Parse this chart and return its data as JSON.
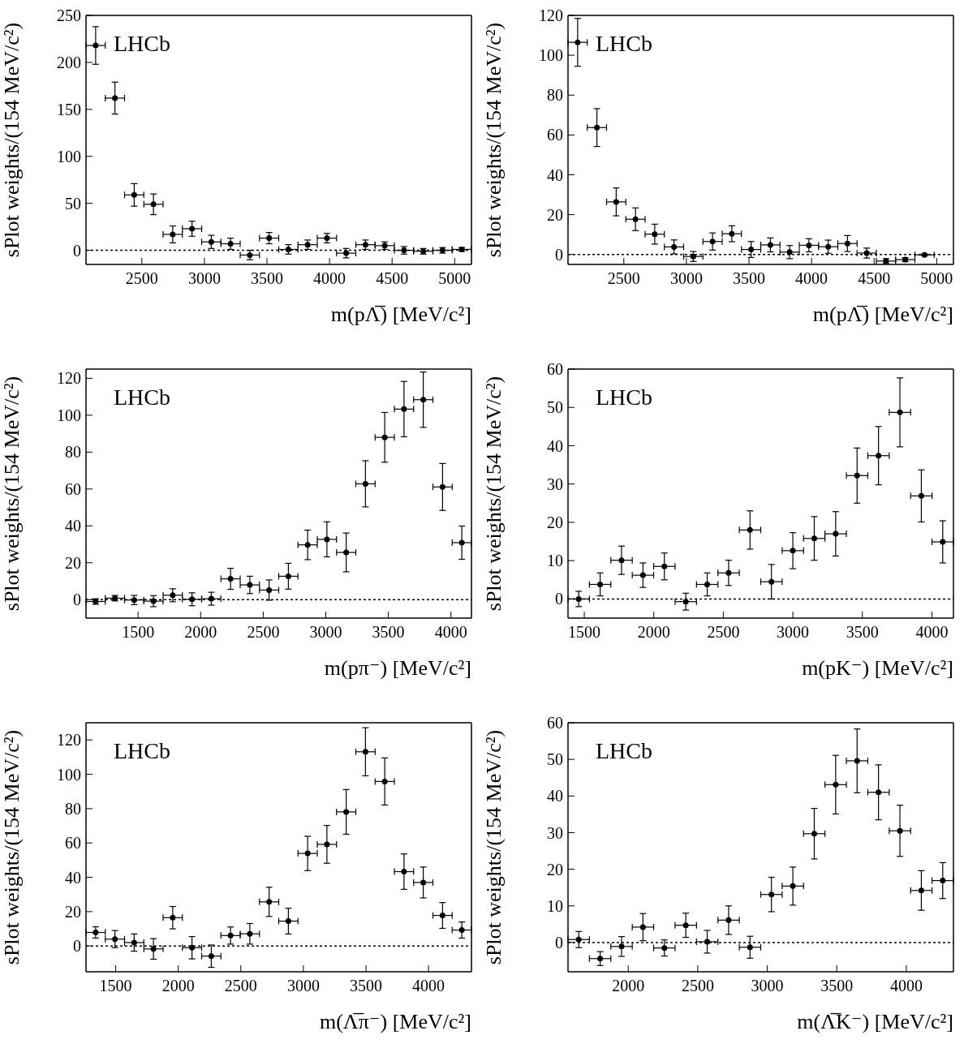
{
  "chart_data": [
    {
      "type": "scatter",
      "xlabel": "m(pΛ̅) [MeV/c²]",
      "ylabel": "sPlot weights/(154 MeV/c²)",
      "annotations": [
        "LHCb"
      ],
      "color": "#000000",
      "marker": "circle",
      "xlim": [
        2054,
        5134
      ],
      "xticks": [
        2500,
        3000,
        3500,
        4000,
        4500,
        5000
      ],
      "ylim": [
        -15,
        250
      ],
      "yticks": [
        0,
        50,
        100,
        150,
        200,
        250
      ],
      "ref_lines": [
        {
          "axis": "y",
          "value": 0,
          "line_style": "dotted",
          "color": "#000000"
        }
      ],
      "x": [
        2131,
        2285,
        2439,
        2593,
        2747,
        2901,
        3055,
        3209,
        3363,
        3517,
        3671,
        3825,
        3979,
        4133,
        4287,
        4441,
        4595,
        4749,
        4903,
        5057
      ],
      "values": [
        218,
        162,
        59,
        49,
        17,
        23,
        9,
        7,
        -5,
        13,
        1,
        6,
        13,
        -3,
        6,
        5,
        0,
        -1,
        0,
        1
      ],
      "errors": [
        20,
        17,
        12,
        11,
        9,
        8,
        7,
        6,
        5,
        6,
        5,
        5,
        5,
        5,
        5,
        4,
        4,
        3,
        3,
        2
      ],
      "xerrors": [
        77,
        77,
        77,
        77,
        77,
        77,
        77,
        77,
        77,
        77,
        77,
        77,
        77,
        77,
        77,
        77,
        77,
        77,
        77,
        77
      ]
    },
    {
      "type": "scatter",
      "xlabel": "m(pΛ̅) [MeV/c²]",
      "ylabel": "sPlot weights/(154 MeV/c²)",
      "annotations": [
        "LHCb"
      ],
      "color": "#000000",
      "marker": "circle",
      "xlim": [
        2054,
        5134
      ],
      "xticks": [
        2500,
        3000,
        3500,
        4000,
        4500,
        5000
      ],
      "ylim": [
        -5,
        120
      ],
      "yticks": [
        0,
        20,
        40,
        60,
        80,
        100,
        120
      ],
      "ref_lines": [
        {
          "axis": "y",
          "value": 0,
          "line_style": "dotted",
          "color": "#000000"
        }
      ],
      "x": [
        2131,
        2285,
        2439,
        2593,
        2747,
        2901,
        3055,
        3209,
        3363,
        3517,
        3671,
        3825,
        3979,
        4133,
        4287,
        4441,
        4595,
        4749,
        4903
      ],
      "values": [
        106.5,
        63.7,
        26.4,
        17.7,
        10.2,
        3.8,
        -1,
        6.5,
        10.4,
        2.5,
        4.8,
        1.2,
        4.6,
        3.9,
        5.5,
        0.7,
        -3.3,
        -2.6,
        -0.2
      ],
      "errors": [
        12,
        9.5,
        7,
        5.7,
        5,
        3.5,
        2.5,
        4.3,
        4,
        4,
        3.5,
        3.3,
        3.3,
        3.3,
        4,
        2.5,
        1.2,
        1,
        0.5
      ],
      "xerrors": [
        77,
        77,
        77,
        77,
        77,
        77,
        77,
        77,
        77,
        77,
        77,
        77,
        77,
        77,
        77,
        77,
        77,
        77,
        77
      ]
    },
    {
      "type": "scatter",
      "xlabel": "m(pπ⁻) [MeV/c²]",
      "ylabel": "sPlot weights/(154 MeV/c²)",
      "annotations": [
        "LHCb"
      ],
      "color": "#000000",
      "marker": "circle",
      "xlim": [
        1084,
        4164
      ],
      "xticks": [
        1500,
        2000,
        2500,
        3000,
        3500,
        4000
      ],
      "ylim": [
        -10,
        125
      ],
      "yticks": [
        0,
        20,
        40,
        60,
        80,
        100,
        120
      ],
      "ref_lines": [
        {
          "axis": "y",
          "value": 0,
          "line_style": "dotted",
          "color": "#000000"
        }
      ],
      "x": [
        1161,
        1315,
        1469,
        1623,
        1777,
        1931,
        2085,
        2239,
        2393,
        2547,
        2701,
        2855,
        3009,
        3163,
        3317,
        3471,
        3625,
        3779,
        3933,
        4087
      ],
      "values": [
        -1,
        0.8,
        -0.2,
        -0.8,
        2.4,
        0.2,
        0.5,
        11.3,
        8,
        5.2,
        12.7,
        29.7,
        32.7,
        25.6,
        62.8,
        88,
        103.3,
        108.4,
        61.1,
        30.9
      ],
      "errors": [
        1.5,
        1.5,
        2.5,
        3,
        3.5,
        3.5,
        3.5,
        5.7,
        4.7,
        5.5,
        7,
        8,
        9.5,
        10.5,
        12.5,
        13.5,
        15,
        15,
        12.7,
        9
      ],
      "xerrors": [
        77,
        77,
        77,
        77,
        77,
        77,
        77,
        77,
        77,
        77,
        77,
        77,
        77,
        77,
        77,
        77,
        77,
        77,
        77,
        77
      ]
    },
    {
      "type": "scatter",
      "xlabel": "m(pK⁻) [MeV/c²]",
      "ylabel": "sPlot weights/(154 MeV/c²)",
      "annotations": [
        "LHCb"
      ],
      "color": "#000000",
      "marker": "circle",
      "xlim": [
        1383,
        4155
      ],
      "xticks": [
        1500,
        2000,
        2500,
        3000,
        3500,
        4000
      ],
      "ylim": [
        -5,
        60
      ],
      "yticks": [
        0,
        10,
        20,
        30,
        40,
        50,
        60
      ],
      "ref_lines": [
        {
          "axis": "y",
          "value": 0,
          "line_style": "dotted",
          "color": "#000000"
        }
      ],
      "x": [
        1460,
        1614,
        1768,
        1922,
        2076,
        2230,
        2384,
        2538,
        2692,
        2846,
        3000,
        3154,
        3308,
        3462,
        3616,
        3770,
        3924,
        4078
      ],
      "values": [
        0,
        3.8,
        10.1,
        6.2,
        8.5,
        -0.7,
        3.8,
        6.8,
        18,
        4.5,
        12.6,
        15.8,
        17,
        32.2,
        37.4,
        48.7,
        26.9,
        14.9
      ],
      "errors": [
        2,
        3,
        3.7,
        3.2,
        3.5,
        2.2,
        3,
        3.3,
        5,
        4.5,
        4.7,
        5.7,
        5.8,
        7.2,
        7.6,
        9,
        6.8,
        5.5
      ],
      "xerrors": [
        77,
        77,
        77,
        77,
        77,
        77,
        77,
        77,
        77,
        77,
        77,
        77,
        77,
        77,
        77,
        77,
        77,
        77
      ]
    },
    {
      "type": "scatter",
      "xlabel": "m(Λ̅π⁻) [MeV/c²]",
      "ylabel": "sPlot weights/(154 MeV/c²)",
      "annotations": [
        "LHCb"
      ],
      "color": "#000000",
      "marker": "circle",
      "xlim": [
        1263,
        4343
      ],
      "xticks": [
        1500,
        2000,
        2500,
        3000,
        3500,
        4000
      ],
      "ylim": [
        -15,
        130
      ],
      "yticks": [
        0,
        20,
        40,
        60,
        80,
        100,
        120
      ],
      "ref_lines": [
        {
          "axis": "y",
          "value": 0,
          "line_style": "dotted",
          "color": "#000000"
        }
      ],
      "x": [
        1340,
        1494,
        1648,
        1802,
        1956,
        2110,
        2264,
        2418,
        2572,
        2726,
        2880,
        3034,
        3188,
        3342,
        3496,
        3650,
        3804,
        3958,
        4112,
        4266
      ],
      "values": [
        7.9,
        4,
        2,
        -1.7,
        16.5,
        -1,
        -5.9,
        6.1,
        7.1,
        25.7,
        14.5,
        53.9,
        59.2,
        78.1,
        113.1,
        95.8,
        43.3,
        37,
        17.8,
        9.3
      ],
      "errors": [
        3.3,
        5,
        5,
        6,
        6.5,
        6.5,
        6.5,
        5,
        6,
        8.5,
        7.5,
        10,
        11,
        13,
        14,
        13.7,
        10.3,
        9,
        7.5,
        4.7
      ],
      "xerrors": [
        77,
        77,
        77,
        77,
        77,
        77,
        77,
        77,
        77,
        77,
        77,
        77,
        77,
        77,
        77,
        77,
        77,
        77,
        77,
        77
      ]
    },
    {
      "type": "scatter",
      "xlabel": "m(Λ̅K⁻) [MeV/c²]",
      "ylabel": "sPlot weights/(154 MeV/c²)",
      "annotations": [
        "LHCb"
      ],
      "color": "#000000",
      "marker": "circle",
      "xlim": [
        1567,
        4339
      ],
      "xticks": [
        2000,
        2500,
        3000,
        3500,
        4000
      ],
      "ylim": [
        -8,
        60
      ],
      "yticks": [
        0,
        10,
        20,
        30,
        40,
        50,
        60
      ],
      "ref_lines": [
        {
          "axis": "y",
          "value": 0,
          "line_style": "dotted",
          "color": "#000000"
        }
      ],
      "x": [
        1644,
        1798,
        1952,
        2106,
        2260,
        2414,
        2568,
        2722,
        2876,
        3030,
        3184,
        3338,
        3492,
        3646,
        3800,
        3954,
        4108,
        4262
      ],
      "values": [
        0.8,
        -4.4,
        -1.1,
        4.2,
        -1.5,
        4.7,
        0.2,
        6.1,
        -1.3,
        13.1,
        15.4,
        29.7,
        43.1,
        49.6,
        41,
        30.5,
        14.2,
        16.9
      ],
      "errors": [
        2.2,
        1.9,
        2.7,
        3.7,
        2.2,
        3.3,
        3.1,
        3.9,
        3,
        4.7,
        5.2,
        6.9,
        8,
        8.7,
        7.5,
        7,
        5.4,
        4.9
      ],
      "xerrors": [
        77,
        77,
        77,
        77,
        77,
        77,
        77,
        77,
        77,
        77,
        77,
        77,
        77,
        77,
        77,
        77,
        77,
        77
      ]
    }
  ]
}
